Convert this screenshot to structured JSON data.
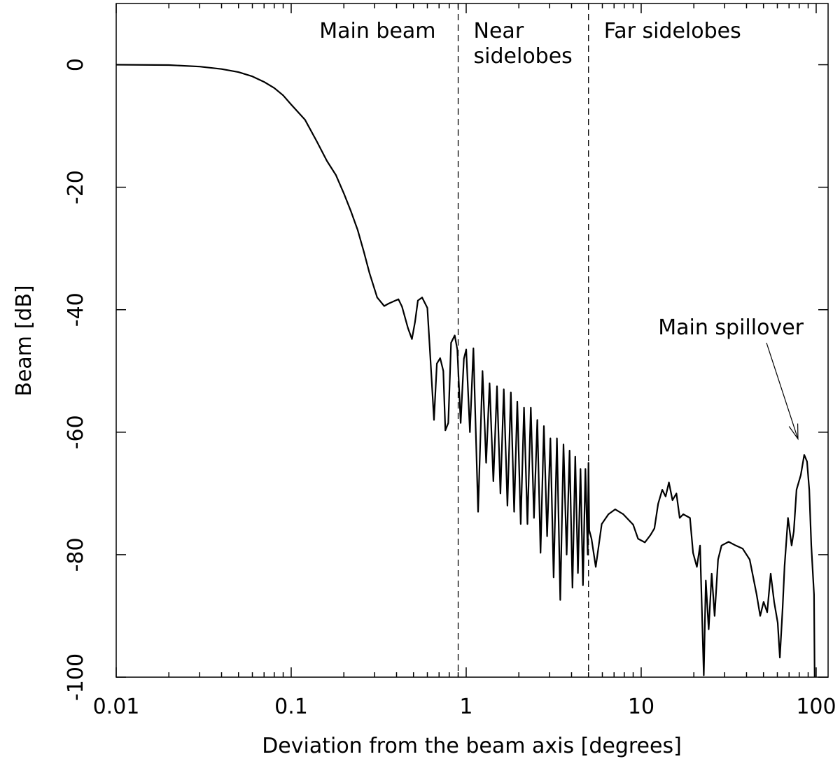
{
  "chart_data": {
    "type": "line",
    "xlabel": "Deviation from the beam axis [degrees]",
    "ylabel": "Beam [dB]",
    "xscale": "log",
    "xlim": [
      0.01,
      117
    ],
    "ylim": [
      -100,
      10
    ],
    "xticks": [
      0.01,
      0.1,
      1,
      10,
      100
    ],
    "xminorticks": [
      0.02,
      0.03,
      0.04,
      0.05,
      0.06,
      0.07,
      0.08,
      0.09,
      0.2,
      0.3,
      0.4,
      0.5,
      0.6,
      0.7,
      0.8,
      0.9,
      2,
      3,
      4,
      5,
      6,
      7,
      8,
      9,
      20,
      30,
      40,
      50,
      60,
      70,
      80,
      90
    ],
    "yticks": [
      0,
      -20,
      -40,
      -60,
      -80,
      -100
    ],
    "color": "#000000",
    "vlines": [
      0.9,
      5
    ],
    "region_labels": [
      [
        "Main beam"
      ],
      [
        "Near",
        "sidelobes"
      ],
      [
        "Far sidelobes"
      ]
    ],
    "annotation": {
      "text": "Main spillover",
      "x": 78.7,
      "y": -61.1
    },
    "x": [
      0.01,
      0.02,
      0.03,
      0.04,
      0.05,
      0.06,
      0.07,
      0.08,
      0.09,
      0.1,
      0.12,
      0.14,
      0.16,
      0.18,
      0.2,
      0.22,
      0.24,
      0.26,
      0.28,
      0.31,
      0.34,
      0.36,
      0.394,
      0.41,
      0.43,
      0.465,
      0.49,
      0.51,
      0.53,
      0.56,
      0.6,
      0.62,
      0.655,
      0.68,
      0.71,
      0.74,
      0.76,
      0.79,
      0.82,
      0.86,
      0.89,
      0.93,
      0.97,
      1.0,
      1.05,
      1.1,
      1.17,
      1.24,
      1.3,
      1.36,
      1.43,
      1.5,
      1.57,
      1.64,
      1.72,
      1.8,
      1.88,
      1.96,
      2.05,
      2.14,
      2.24,
      2.34,
      2.44,
      2.55,
      2.66,
      2.78,
      2.9,
      3.03,
      3.16,
      3.3,
      3.45,
      3.6,
      3.75,
      3.9,
      4.05,
      4.2,
      4.35,
      4.5,
      4.65,
      4.8,
      4.95,
      5.0,
      5.05,
      5.2,
      5.5,
      5.95,
      6.5,
      7.1,
      7.9,
      9.0,
      9.6,
      10.5,
      11.3,
      11.9,
      12.5,
      13.2,
      13.8,
      14.4,
      15.1,
      15.9,
      16.6,
      17.4,
      19,
      19.8,
      20.8,
      21.7,
      22.8,
      23.4,
      24.3,
      25.3,
      26.3,
      27.5,
      28.8,
      31.6,
      34.7,
      38,
      41.7,
      45.7,
      47.9,
      50.1,
      52.5,
      55,
      57.5,
      60.3,
      62,
      64.3,
      66,
      69,
      72.4,
      74.5,
      77.2,
      81.7,
      85.5,
      88.7,
      91.3,
      93.8,
      97.2,
      98
    ],
    "values": [
      0,
      -0.05,
      -0.3,
      -0.7,
      -1.2,
      -1.9,
      -2.8,
      -3.8,
      -5,
      -6.5,
      -9,
      -12.5,
      -15.7,
      -18,
      -21,
      -24,
      -27,
      -30.5,
      -34,
      -38,
      -39.4,
      -39,
      -38.5,
      -38.3,
      -39.5,
      -43,
      -44.8,
      -42,
      -38.5,
      -38,
      -39.7,
      -46.5,
      -58,
      -48.8,
      -47.9,
      -50,
      -59.7,
      -58.5,
      -45.4,
      -44.2,
      -46.5,
      -58.5,
      -48,
      -46.5,
      -60,
      -46.3,
      -73,
      -50,
      -65,
      -52,
      -68,
      -52.5,
      -70,
      -53,
      -72,
      -53.5,
      -73,
      -55,
      -75,
      -56,
      -75,
      -56,
      -74,
      -58,
      -79.7,
      -59,
      -77,
      -61,
      -83.7,
      -61,
      -87.4,
      -62,
      -80,
      -63,
      -85.4,
      -64,
      -83,
      -66,
      -85,
      -66,
      -80,
      -65,
      -76,
      -77.4,
      -82,
      -75,
      -73.4,
      -72.6,
      -73.4,
      -75.1,
      -77.4,
      -78,
      -76.8,
      -75.7,
      -71.7,
      -69.4,
      -70.5,
      -68.2,
      -71.1,
      -70,
      -74,
      -73.4,
      -74,
      -79.7,
      -82,
      -78.5,
      -99.7,
      -84.2,
      -92.2,
      -83.1,
      -90,
      -80.8,
      -78.5,
      -77.9,
      -78.5,
      -79,
      -80.8,
      -86.5,
      -90,
      -87.7,
      -89.4,
      -83.1,
      -87.7,
      -91.1,
      -96.8,
      -88.8,
      -81.9,
      -74,
      -78.5,
      -76.2,
      -69.4,
      -67,
      -63.7,
      -64.8,
      -69.4,
      -78.5,
      -86.5,
      -100
    ]
  }
}
